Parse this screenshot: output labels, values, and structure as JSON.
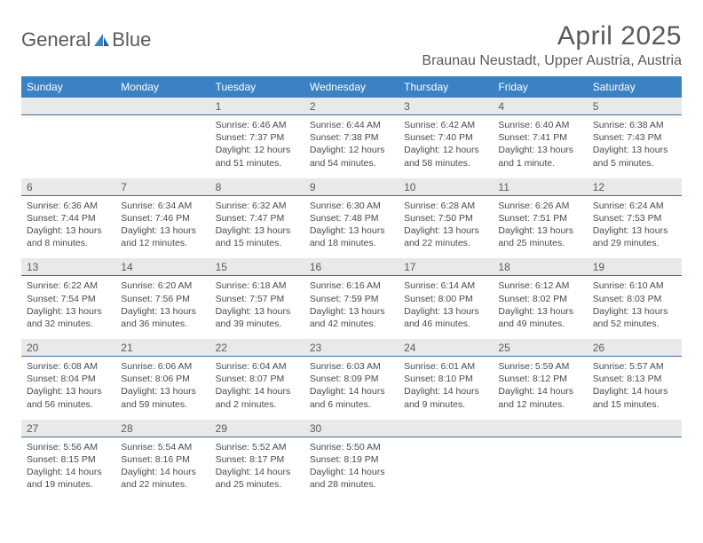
{
  "logo": {
    "text_left": "General",
    "text_blue": "Blue",
    "accent_color": "#3b82c4"
  },
  "title": "April 2025",
  "location": "Braunau Neustadt, Upper Austria, Austria",
  "colors": {
    "header_bg": "#3b82c4",
    "header_text": "#ffffff",
    "daynum_bg": "#e9e9e9",
    "text": "#5a5a5a",
    "rule": "#3b6f9e"
  },
  "day_headers": [
    "Sunday",
    "Monday",
    "Tuesday",
    "Wednesday",
    "Thursday",
    "Friday",
    "Saturday"
  ],
  "weeks": [
    {
      "nums": [
        "",
        "",
        "1",
        "2",
        "3",
        "4",
        "5"
      ],
      "cells": [
        null,
        null,
        {
          "sunrise": "Sunrise: 6:46 AM",
          "sunset": "Sunset: 7:37 PM",
          "daylight": "Daylight: 12 hours and 51 minutes."
        },
        {
          "sunrise": "Sunrise: 6:44 AM",
          "sunset": "Sunset: 7:38 PM",
          "daylight": "Daylight: 12 hours and 54 minutes."
        },
        {
          "sunrise": "Sunrise: 6:42 AM",
          "sunset": "Sunset: 7:40 PM",
          "daylight": "Daylight: 12 hours and 58 minutes."
        },
        {
          "sunrise": "Sunrise: 6:40 AM",
          "sunset": "Sunset: 7:41 PM",
          "daylight": "Daylight: 13 hours and 1 minute."
        },
        {
          "sunrise": "Sunrise: 6:38 AM",
          "sunset": "Sunset: 7:43 PM",
          "daylight": "Daylight: 13 hours and 5 minutes."
        }
      ]
    },
    {
      "nums": [
        "6",
        "7",
        "8",
        "9",
        "10",
        "11",
        "12"
      ],
      "cells": [
        {
          "sunrise": "Sunrise: 6:36 AM",
          "sunset": "Sunset: 7:44 PM",
          "daylight": "Daylight: 13 hours and 8 minutes."
        },
        {
          "sunrise": "Sunrise: 6:34 AM",
          "sunset": "Sunset: 7:46 PM",
          "daylight": "Daylight: 13 hours and 12 minutes."
        },
        {
          "sunrise": "Sunrise: 6:32 AM",
          "sunset": "Sunset: 7:47 PM",
          "daylight": "Daylight: 13 hours and 15 minutes."
        },
        {
          "sunrise": "Sunrise: 6:30 AM",
          "sunset": "Sunset: 7:48 PM",
          "daylight": "Daylight: 13 hours and 18 minutes."
        },
        {
          "sunrise": "Sunrise: 6:28 AM",
          "sunset": "Sunset: 7:50 PM",
          "daylight": "Daylight: 13 hours and 22 minutes."
        },
        {
          "sunrise": "Sunrise: 6:26 AM",
          "sunset": "Sunset: 7:51 PM",
          "daylight": "Daylight: 13 hours and 25 minutes."
        },
        {
          "sunrise": "Sunrise: 6:24 AM",
          "sunset": "Sunset: 7:53 PM",
          "daylight": "Daylight: 13 hours and 29 minutes."
        }
      ]
    },
    {
      "nums": [
        "13",
        "14",
        "15",
        "16",
        "17",
        "18",
        "19"
      ],
      "cells": [
        {
          "sunrise": "Sunrise: 6:22 AM",
          "sunset": "Sunset: 7:54 PM",
          "daylight": "Daylight: 13 hours and 32 minutes."
        },
        {
          "sunrise": "Sunrise: 6:20 AM",
          "sunset": "Sunset: 7:56 PM",
          "daylight": "Daylight: 13 hours and 36 minutes."
        },
        {
          "sunrise": "Sunrise: 6:18 AM",
          "sunset": "Sunset: 7:57 PM",
          "daylight": "Daylight: 13 hours and 39 minutes."
        },
        {
          "sunrise": "Sunrise: 6:16 AM",
          "sunset": "Sunset: 7:59 PM",
          "daylight": "Daylight: 13 hours and 42 minutes."
        },
        {
          "sunrise": "Sunrise: 6:14 AM",
          "sunset": "Sunset: 8:00 PM",
          "daylight": "Daylight: 13 hours and 46 minutes."
        },
        {
          "sunrise": "Sunrise: 6:12 AM",
          "sunset": "Sunset: 8:02 PM",
          "daylight": "Daylight: 13 hours and 49 minutes."
        },
        {
          "sunrise": "Sunrise: 6:10 AM",
          "sunset": "Sunset: 8:03 PM",
          "daylight": "Daylight: 13 hours and 52 minutes."
        }
      ]
    },
    {
      "nums": [
        "20",
        "21",
        "22",
        "23",
        "24",
        "25",
        "26"
      ],
      "cells": [
        {
          "sunrise": "Sunrise: 6:08 AM",
          "sunset": "Sunset: 8:04 PM",
          "daylight": "Daylight: 13 hours and 56 minutes."
        },
        {
          "sunrise": "Sunrise: 6:06 AM",
          "sunset": "Sunset: 8:06 PM",
          "daylight": "Daylight: 13 hours and 59 minutes."
        },
        {
          "sunrise": "Sunrise: 6:04 AM",
          "sunset": "Sunset: 8:07 PM",
          "daylight": "Daylight: 14 hours and 2 minutes."
        },
        {
          "sunrise": "Sunrise: 6:03 AM",
          "sunset": "Sunset: 8:09 PM",
          "daylight": "Daylight: 14 hours and 6 minutes."
        },
        {
          "sunrise": "Sunrise: 6:01 AM",
          "sunset": "Sunset: 8:10 PM",
          "daylight": "Daylight: 14 hours and 9 minutes."
        },
        {
          "sunrise": "Sunrise: 5:59 AM",
          "sunset": "Sunset: 8:12 PM",
          "daylight": "Daylight: 14 hours and 12 minutes."
        },
        {
          "sunrise": "Sunrise: 5:57 AM",
          "sunset": "Sunset: 8:13 PM",
          "daylight": "Daylight: 14 hours and 15 minutes."
        }
      ]
    },
    {
      "nums": [
        "27",
        "28",
        "29",
        "30",
        "",
        "",
        ""
      ],
      "cells": [
        {
          "sunrise": "Sunrise: 5:56 AM",
          "sunset": "Sunset: 8:15 PM",
          "daylight": "Daylight: 14 hours and 19 minutes."
        },
        {
          "sunrise": "Sunrise: 5:54 AM",
          "sunset": "Sunset: 8:16 PM",
          "daylight": "Daylight: 14 hours and 22 minutes."
        },
        {
          "sunrise": "Sunrise: 5:52 AM",
          "sunset": "Sunset: 8:17 PM",
          "daylight": "Daylight: 14 hours and 25 minutes."
        },
        {
          "sunrise": "Sunrise: 5:50 AM",
          "sunset": "Sunset: 8:19 PM",
          "daylight": "Daylight: 14 hours and 28 minutes."
        },
        null,
        null,
        null
      ]
    }
  ]
}
